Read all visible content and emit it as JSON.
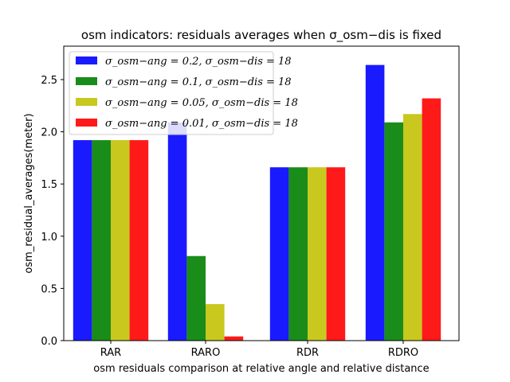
{
  "chart_data": {
    "type": "bar",
    "title": "osm indicators: residuals averages when σ_osm−dis is fixed",
    "xlabel": "osm residuals comparison at relative angle and relative distance",
    "ylabel": "osm_residual_averages(meter)",
    "categories": [
      "RAR",
      "RARO",
      "RDR",
      "RDRO"
    ],
    "ylim": [
      0,
      2.82
    ],
    "yticks": [
      "0.0",
      "0.5",
      "1.0",
      "1.5",
      "2.0",
      "2.5"
    ],
    "grid": false,
    "legend_position": "upper-left",
    "series": [
      {
        "name": "σ_osm−ang = 0.2, σ_osm−dis = 18",
        "color": "#1a1aff",
        "values": [
          1.92,
          2.09,
          1.66,
          2.64
        ]
      },
      {
        "name": "σ_osm−ang = 0.1, σ_osm−dis = 18",
        "color": "#1a8c1a",
        "values": [
          1.92,
          0.81,
          1.66,
          2.09
        ]
      },
      {
        "name": "σ_osm−ang = 0.05, σ_osm−dis = 18",
        "color": "#c8c81f",
        "values": [
          1.92,
          0.35,
          1.66,
          2.17
        ]
      },
      {
        "name": "σ_osm−ang = 0.01, σ_osm−dis = 18",
        "color": "#ff1a1a",
        "values": [
          1.92,
          0.04,
          1.66,
          2.32
        ]
      }
    ]
  }
}
